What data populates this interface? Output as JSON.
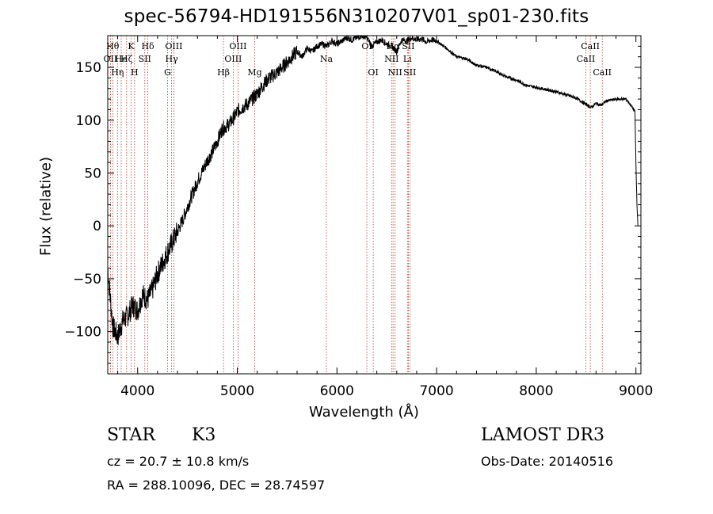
{
  "chart_data": {
    "type": "line",
    "title": "spec-56794-HD191556N310207V01_sp01-230.fits",
    "xlabel": "Wavelength (Å)",
    "ylabel": "Flux (relative)",
    "xlim": [
      3700,
      9050
    ],
    "ylim": [
      -140,
      180
    ],
    "xticks": [
      4000,
      5000,
      6000,
      7000,
      8000,
      9000
    ],
    "yticks": [
      -100,
      -50,
      0,
      50,
      100,
      150
    ],
    "ytick_labels": [
      "−100",
      "−50",
      "0",
      "50",
      "100",
      "150"
    ],
    "series": [
      {
        "name": "spectrum",
        "x": [
          3700,
          3750,
          3800,
          3850,
          3900,
          3950,
          4000,
          4050,
          4100,
          4150,
          4200,
          4250,
          4300,
          4350,
          4400,
          4450,
          4500,
          4550,
          4600,
          4650,
          4700,
          4750,
          4800,
          4850,
          4900,
          4950,
          5000,
          5050,
          5100,
          5150,
          5200,
          5250,
          5300,
          5350,
          5400,
          5450,
          5500,
          5550,
          5600,
          5650,
          5700,
          5750,
          5800,
          5850,
          5900,
          5950,
          6000,
          6050,
          6100,
          6150,
          6200,
          6250,
          6300,
          6350,
          6400,
          6450,
          6500,
          6550,
          6600,
          6650,
          6700,
          6750,
          6800,
          6850,
          6900,
          6950,
          7000,
          7100,
          7200,
          7300,
          7400,
          7500,
          7600,
          7700,
          7800,
          7900,
          8000,
          8100,
          8200,
          8300,
          8400,
          8500,
          8550,
          8600,
          8650,
          8700,
          8800,
          8900,
          8950,
          8990,
          9000,
          9010,
          9020
        ],
        "y": [
          -40,
          -95,
          -105,
          -90,
          -85,
          -75,
          -80,
          -65,
          -70,
          -60,
          -45,
          -35,
          -25,
          -15,
          -5,
          5,
          18,
          30,
          42,
          52,
          62,
          70,
          80,
          92,
          95,
          100,
          108,
          112,
          115,
          120,
          125,
          132,
          138,
          142,
          145,
          150,
          155,
          160,
          165,
          160,
          168,
          165,
          170,
          172,
          170,
          175,
          172,
          175,
          178,
          176,
          178,
          180,
          178,
          170,
          174,
          176,
          172,
          170,
          165,
          176,
          175,
          178,
          176,
          177,
          174,
          176,
          175,
          168,
          160,
          158,
          152,
          150,
          146,
          141,
          138,
          133,
          131,
          129,
          127,
          124,
          121,
          115,
          112,
          116,
          114,
          118,
          120,
          120,
          114,
          108,
          60,
          20,
          0
        ]
      }
    ],
    "line_markers": [
      {
        "wavelength": 3727,
        "label": "OII",
        "row": 2
      },
      {
        "wavelength": 3750,
        "label": "Hθ",
        "row": 1
      },
      {
        "wavelength": 3798,
        "label": "Hη",
        "row": 3
      },
      {
        "wavelength": 3835,
        "label": "He",
        "row": 2
      },
      {
        "wavelength": 3889,
        "label": "Hζ",
        "row": 2
      },
      {
        "wavelength": 3934,
        "label": "K",
        "row": 1
      },
      {
        "wavelength": 3969,
        "label": "H",
        "row": 3
      },
      {
        "wavelength": 4072,
        "label": "SII",
        "row": 2
      },
      {
        "wavelength": 4102,
        "label": "Hδ",
        "row": 1
      },
      {
        "wavelength": 4300,
        "label": "G",
        "row": 3
      },
      {
        "wavelength": 4341,
        "label": "Hγ",
        "row": 2
      },
      {
        "wavelength": 4363,
        "label": "OIII",
        "row": 1
      },
      {
        "wavelength": 4861,
        "label": "Hβ",
        "row": 3
      },
      {
        "wavelength": 4959,
        "label": "OIII",
        "row": 2
      },
      {
        "wavelength": 5007,
        "label": "OIII",
        "row": 1
      },
      {
        "wavelength": 5175,
        "label": "Mg",
        "row": 3
      },
      {
        "wavelength": 5894,
        "label": "Na",
        "row": 2
      },
      {
        "wavelength": 6300,
        "label": "OI",
        "row": 1
      },
      {
        "wavelength": 6364,
        "label": "OI",
        "row": 3
      },
      {
        "wavelength": 6548,
        "label": "NII",
        "row": 2
      },
      {
        "wavelength": 6563,
        "label": "Hα",
        "row": 1
      },
      {
        "wavelength": 6583,
        "label": "NII",
        "row": 3
      },
      {
        "wavelength": 6707,
        "label": "Li",
        "row": 2
      },
      {
        "wavelength": 6716,
        "label": "SII",
        "row": 1
      },
      {
        "wavelength": 6731,
        "label": "SII",
        "row": 3
      },
      {
        "wavelength": 8498,
        "label": "CaII",
        "row": 2
      },
      {
        "wavelength": 8542,
        "label": "CaII",
        "row": 1
      },
      {
        "wavelength": 8662,
        "label": "CaII",
        "row": 3
      }
    ]
  },
  "info": {
    "object_class": "STAR",
    "subclass": "K3",
    "survey": "LAMOST DR3",
    "cz": "cz = 20.7 ± 10.8 km/s",
    "obs_date": "Obs-Date: 20140516",
    "radec": "RA = 288.10096, DEC =  28.74597"
  }
}
